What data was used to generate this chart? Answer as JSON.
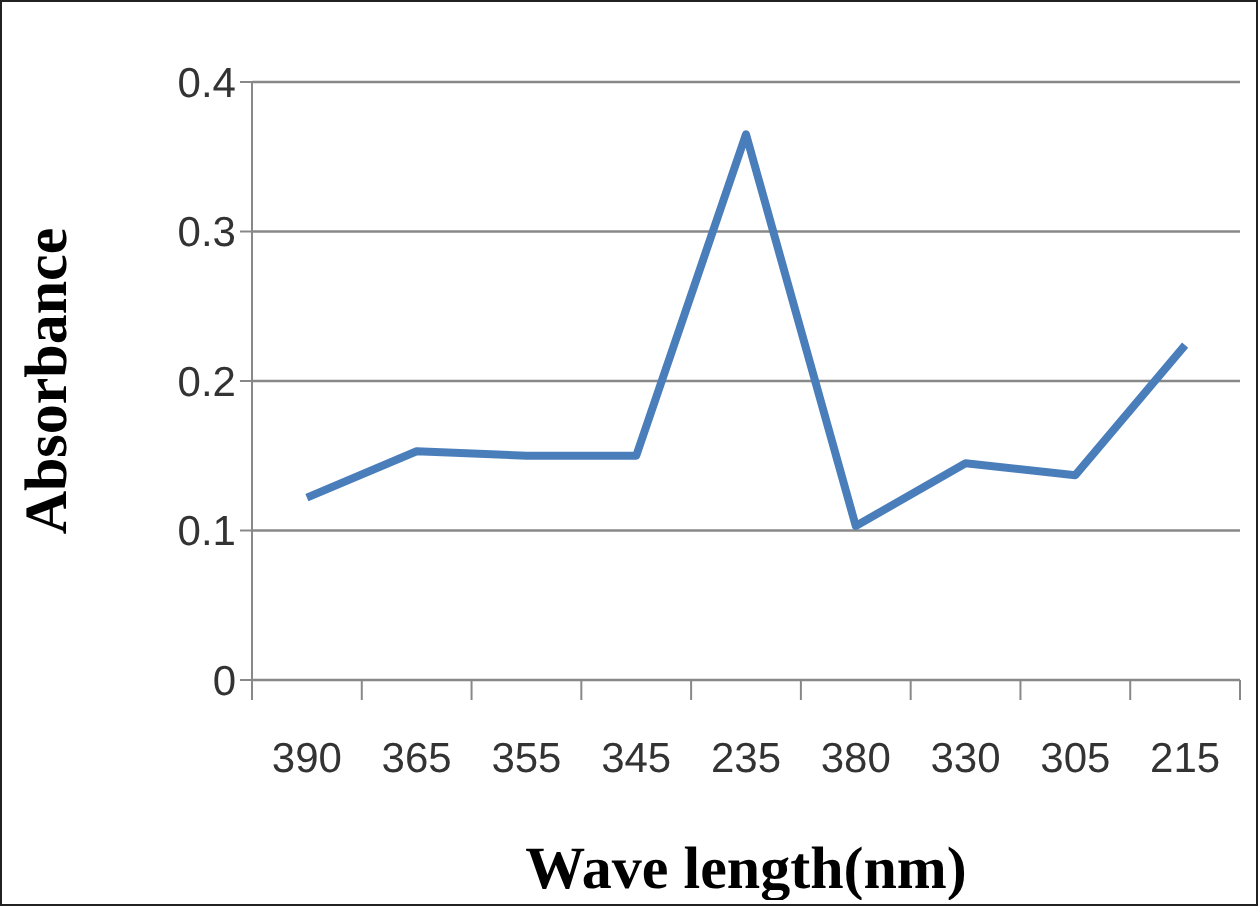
{
  "chart_data": {
    "type": "line",
    "xlabel": "Wave length(nm)",
    "ylabel": "Absorbance",
    "categories": [
      "390",
      "365",
      "355",
      "345",
      "235",
      "380",
      "330",
      "305",
      "215"
    ],
    "series": [
      {
        "color": "#4a7ebb",
        "values": [
          0.122,
          0.153,
          0.15,
          0.15,
          0.365,
          0.103,
          0.145,
          0.137,
          0.224
        ]
      }
    ],
    "ylim": [
      0,
      0.4
    ],
    "yticks": [
      0,
      0.1,
      0.2,
      0.3,
      0.4
    ],
    "grid": "y",
    "legend": false,
    "marker": "none",
    "line_style": "solid"
  }
}
